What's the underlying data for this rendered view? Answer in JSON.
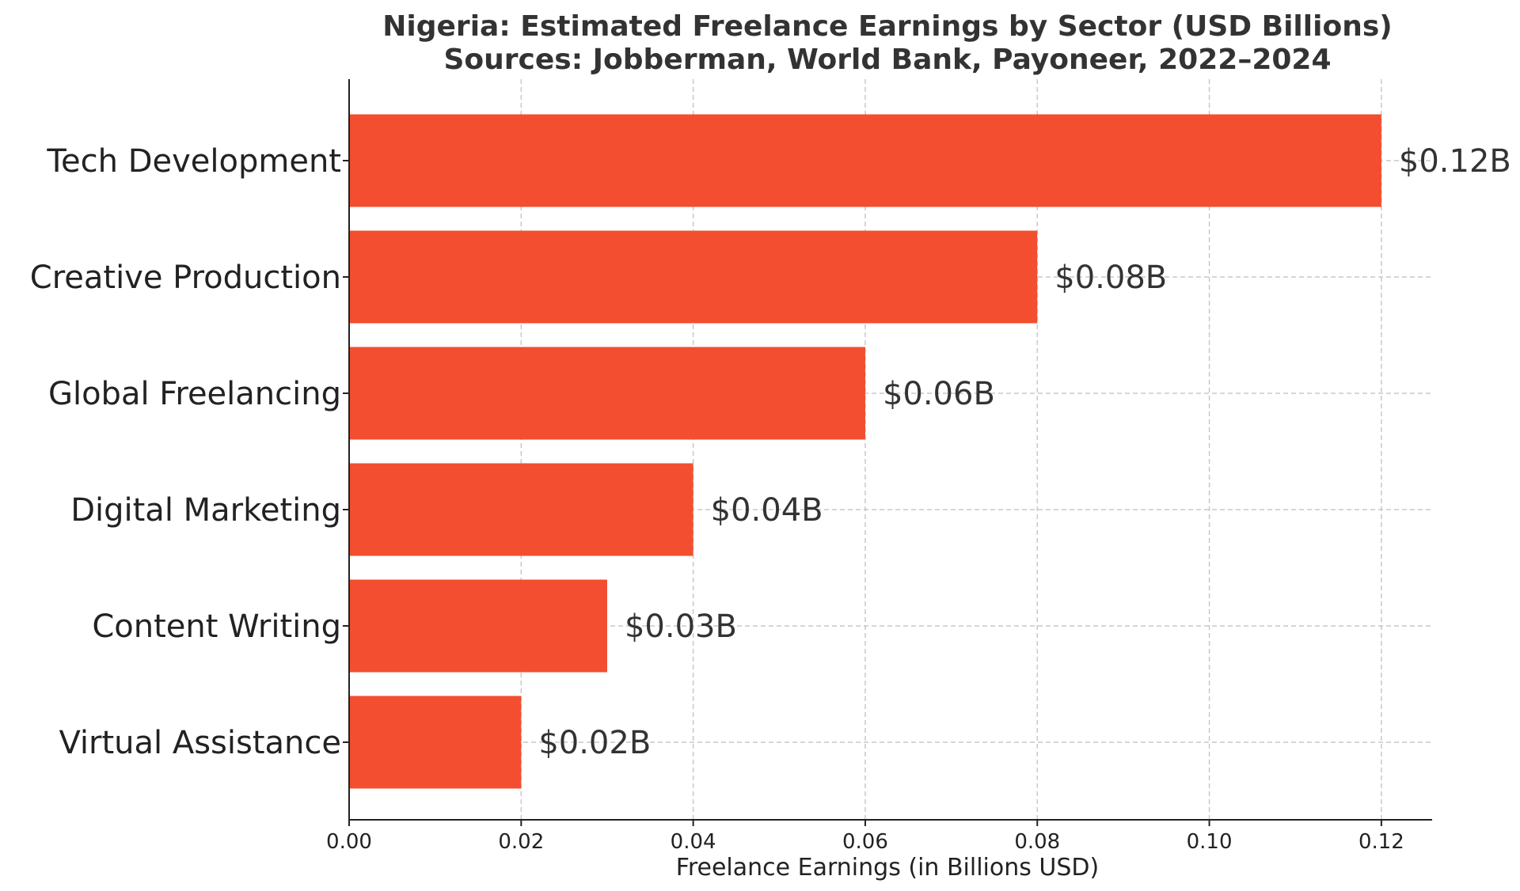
{
  "chart_data": {
    "type": "bar",
    "orientation": "horizontal",
    "title_lines": [
      "Nigeria: Estimated Freelance Earnings by Sector (USD Billions)",
      "Sources: Jobberman, World Bank, Payoneer, 2022–2024"
    ],
    "xlabel": "Freelance Earnings (in Billions USD)",
    "ylabel": "",
    "categories": [
      "Tech Development",
      "Creative Production",
      "Global Freelancing",
      "Digital Marketing",
      "Content Writing",
      "Virtual Assistance"
    ],
    "values": [
      0.12,
      0.08,
      0.06,
      0.04,
      0.03,
      0.02
    ],
    "value_labels": [
      "$0.12B",
      "$0.08B",
      "$0.06B",
      "$0.04B",
      "$0.03B",
      "$0.02B"
    ],
    "x_ticks": [
      0.0,
      0.02,
      0.04,
      0.06,
      0.08,
      0.1,
      0.12
    ],
    "x_tick_labels": [
      "0.00",
      "0.02",
      "0.04",
      "0.06",
      "0.08",
      "0.10",
      "0.12"
    ],
    "xlim": [
      0.0,
      0.1259
    ],
    "grid": true,
    "bar_color": "#f24e2f"
  }
}
